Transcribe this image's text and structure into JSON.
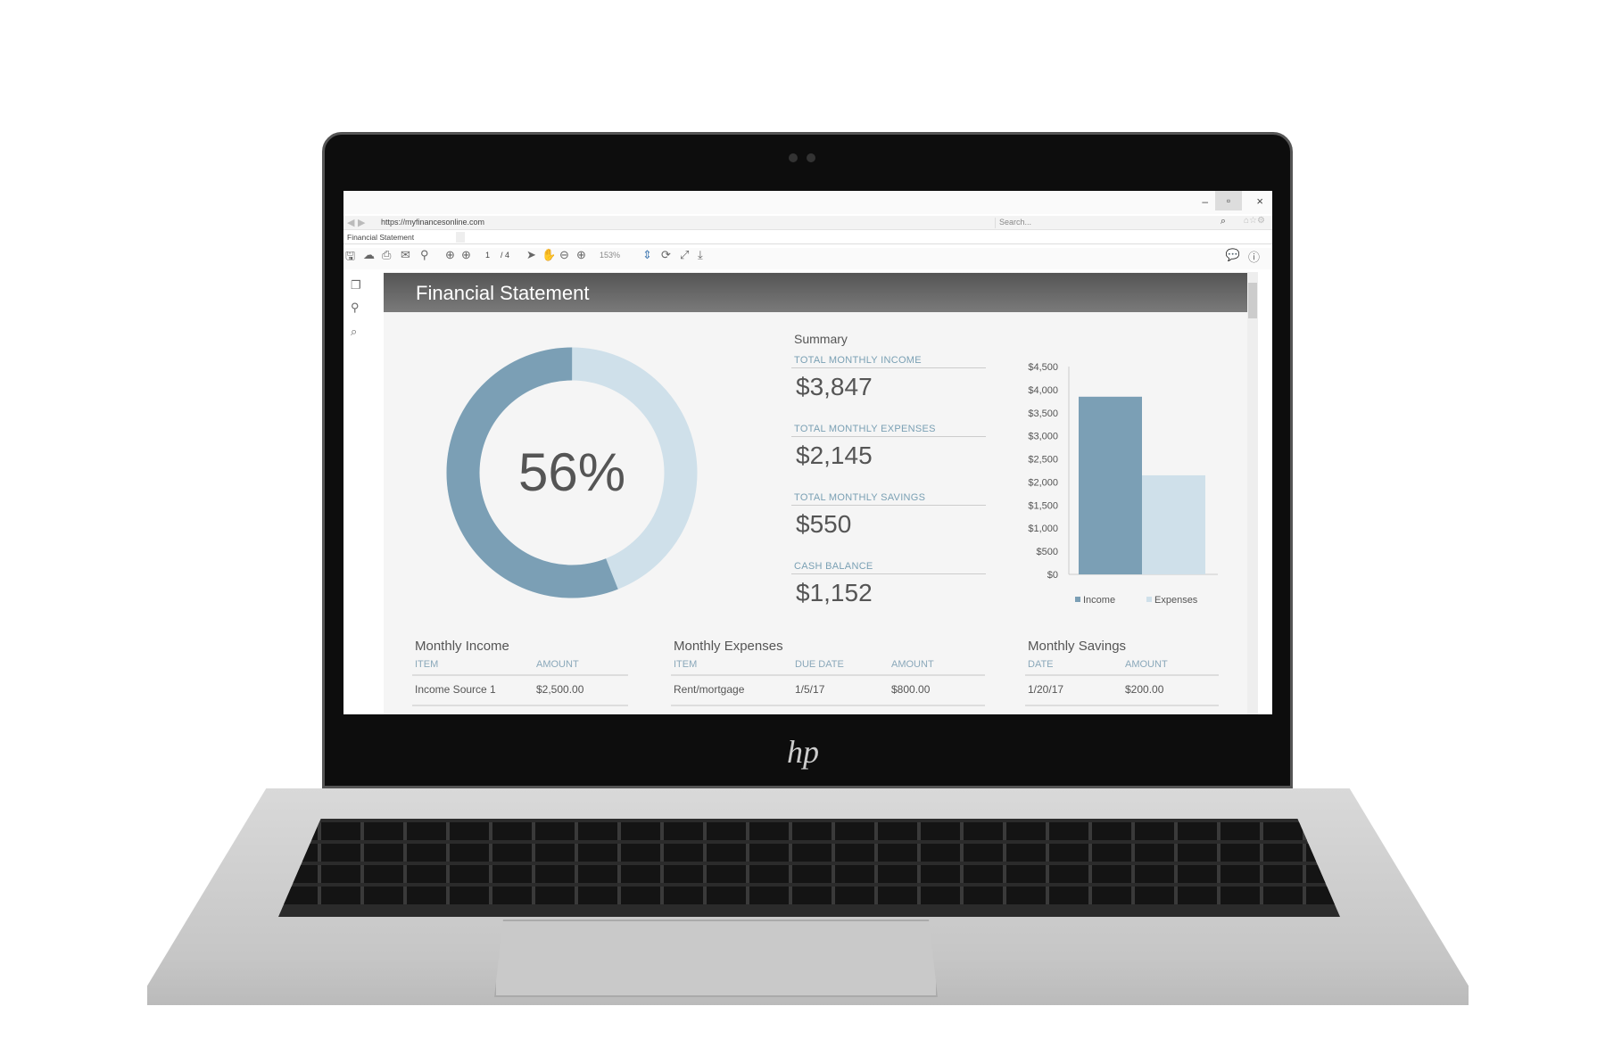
{
  "browser": {
    "url": "https://myfinancesonline.com",
    "search_placeholder": "Search...",
    "tab": "Financial Statement",
    "page": "1",
    "pages": "/ 4",
    "zoom": "153%",
    "min": "–",
    "max": "▫",
    "close": "×"
  },
  "doc": {
    "title": "Financial Statement",
    "donut_value": 56,
    "donut_label": "56%",
    "colors": {
      "dark": "#7b9fb5",
      "light": "#cfe0ea"
    },
    "summary": {
      "heading": "Summary",
      "items": [
        {
          "label": "TOTAL MONTHLY INCOME",
          "value": "$3,847"
        },
        {
          "label": "TOTAL MONTHLY EXPENSES",
          "value": "$2,145"
        },
        {
          "label": "TOTAL MONTHLY SAVINGS",
          "value": "$550"
        },
        {
          "label": "CASH BALANCE",
          "value": "$1,152"
        }
      ]
    },
    "income": {
      "title": "Monthly Income",
      "headers": [
        "ITEM",
        "AMOUNT"
      ],
      "rows": [
        [
          "Income Source 1",
          "$2,500.00"
        ]
      ]
    },
    "expenses": {
      "title": "Monthly Expenses",
      "headers": [
        "ITEM",
        "DUE DATE",
        "AMOUNT"
      ],
      "rows": [
        [
          "Rent/mortgage",
          "1/5/17",
          "$800.00"
        ]
      ]
    },
    "savings": {
      "title": "Monthly Savings",
      "headers": [
        "DATE",
        "AMOUNT"
      ],
      "rows": [
        [
          "1/20/17",
          "$200.00"
        ]
      ]
    }
  },
  "chart_data": {
    "type": "bar",
    "categories": [
      "Income",
      "Expenses"
    ],
    "values": [
      3847,
      2145
    ],
    "ylim": [
      0,
      4500
    ],
    "yticks": [
      "$4,500",
      "$4,000",
      "$3,500",
      "$3,000",
      "$2,500",
      "$2,000",
      "$1,500",
      "$1,000",
      "$500",
      "$0"
    ],
    "legend": [
      "Income",
      "Expenses"
    ],
    "legend_position": "bottom"
  }
}
